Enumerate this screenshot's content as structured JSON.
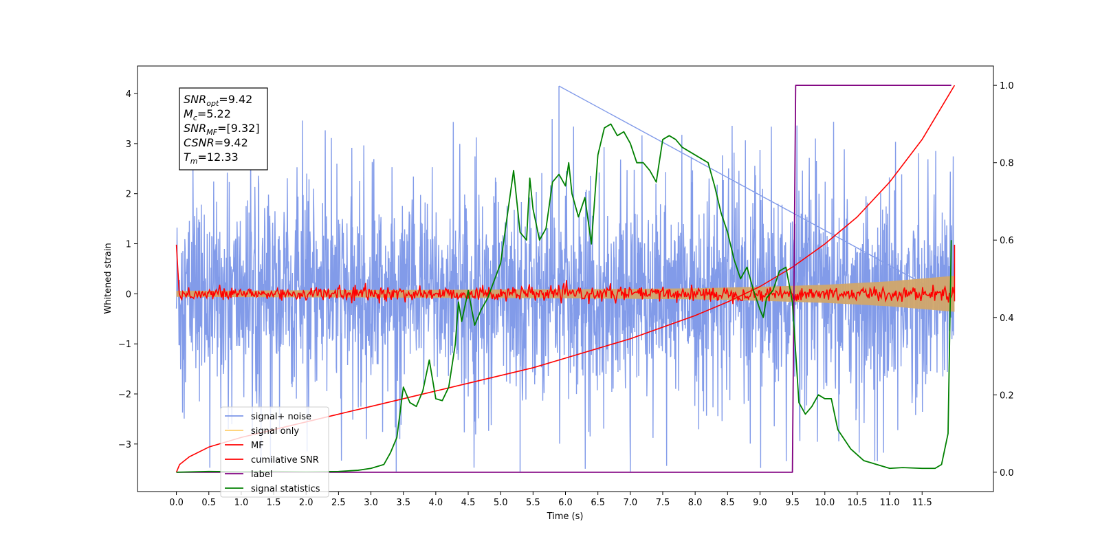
{
  "chart_data": {
    "type": "line",
    "title": "",
    "xlabel": "Time (s)",
    "ylabel": "Whitened strain",
    "xlim": [
      -0.6,
      12.6
    ],
    "ylim": [
      -3.95,
      4.55
    ],
    "y2lim": [
      -0.05,
      1.05
    ],
    "x_ticks": [
      0.0,
      0.5,
      1.0,
      1.5,
      2.0,
      2.5,
      3.0,
      3.5,
      4.0,
      4.5,
      5.0,
      5.5,
      6.0,
      6.5,
      7.0,
      7.5,
      8.0,
      8.5,
      9.0,
      9.5,
      10.0,
      10.5,
      11.0,
      11.5
    ],
    "x_tick_labels": [
      "0.0",
      "0.5",
      "1.0",
      "1.5",
      "2.0",
      "2.5",
      "3.0",
      "3.5",
      "4.0",
      "4.5",
      "5.0",
      "5.5",
      "6.0",
      "6.5",
      "7.0",
      "7.5",
      "8.0",
      "8.5",
      "9.0",
      "9.5",
      "10.0",
      "10.5",
      "11.0",
      "11.5"
    ],
    "y_ticks": [
      -3,
      -2,
      -1,
      0,
      1,
      2,
      3,
      4
    ],
    "y_tick_labels": [
      "−3",
      "−2",
      "−1",
      "0",
      "1",
      "2",
      "3",
      "4"
    ],
    "y2_ticks": [
      0.0,
      0.2,
      0.4,
      0.6,
      0.8,
      1.0
    ],
    "y2_tick_labels": [
      "0.0",
      "0.2",
      "0.4",
      "0.6",
      "0.8",
      "1.0"
    ],
    "grid": false,
    "legend": {
      "placement": "lower-left",
      "entries": [
        {
          "label": "signal+ noise",
          "color": "#7b96e8"
        },
        {
          "label": "signal only",
          "color": "#ffcf6b"
        },
        {
          "label": "MF",
          "color": "#ff0000"
        },
        {
          "label": "cumilative SNR",
          "color": "#ff0000"
        },
        {
          "label": "label",
          "color": "#800080"
        },
        {
          "label": "signal statistics",
          "color": "#008000"
        }
      ]
    },
    "annotation": [
      {
        "var": "SNR",
        "sub": "opt",
        "text": "=9.42"
      },
      {
        "var": "M",
        "sub": "c",
        "text": "=5.22"
      },
      {
        "var": "SNR",
        "sub": "MF",
        "text": "=[9.32]"
      },
      {
        "var": "CSNR",
        "sub": "",
        "text": "=9.42"
      },
      {
        "var": "T",
        "sub": "m",
        "text": "=12.33"
      }
    ],
    "series": [
      {
        "name": "signal+ noise",
        "color": "#7b96e8",
        "axis": "left",
        "description_values": {
          "x_start": 0.0,
          "x_end": 12.0,
          "band_min": -2.2,
          "band_max": 2.2,
          "peak_max": 4.15,
          "peak_min": -3.55
        }
      },
      {
        "name": "signal only",
        "color": "#d1a66a",
        "axis": "left",
        "envelope": {
          "x": [
            0.0,
            2.0,
            4.0,
            6.0,
            8.0,
            9.0,
            10.0,
            11.0,
            12.0
          ],
          "amplitude": [
            0.06,
            0.07,
            0.08,
            0.09,
            0.11,
            0.14,
            0.18,
            0.25,
            0.36
          ]
        }
      },
      {
        "name": "MF",
        "color": "#ff0000",
        "axis": "left",
        "start": {
          "x": 0.0,
          "y": 0.98
        },
        "noise_amplitude": 0.12
      },
      {
        "name": "cumilative SNR",
        "color": "#ff0000",
        "axis": "right",
        "x": [
          0.0,
          0.05,
          0.2,
          0.5,
          1.0,
          1.5,
          2.0,
          2.5,
          3.0,
          3.5,
          4.0,
          4.5,
          5.0,
          5.5,
          6.0,
          6.5,
          7.0,
          7.5,
          8.0,
          8.5,
          9.0,
          9.5,
          10.0,
          10.5,
          11.0,
          11.5,
          12.0
        ],
        "y": [
          0.0,
          0.02,
          0.04,
          0.065,
          0.09,
          0.11,
          0.13,
          0.15,
          0.17,
          0.19,
          0.21,
          0.23,
          0.25,
          0.27,
          0.295,
          0.32,
          0.345,
          0.375,
          0.405,
          0.44,
          0.48,
          0.53,
          0.59,
          0.66,
          0.75,
          0.86,
          1.0
        ]
      },
      {
        "name": "label",
        "color": "#800080",
        "axis": "right",
        "x": [
          0.0,
          9.5,
          9.55,
          11.95
        ],
        "y": [
          0.0,
          0.0,
          1.0,
          1.0
        ]
      },
      {
        "name": "signal statistics",
        "color": "#008000",
        "axis": "right",
        "x": [
          0.0,
          0.5,
          1.0,
          1.5,
          2.0,
          2.5,
          2.8,
          3.0,
          3.2,
          3.3,
          3.4,
          3.5,
          3.6,
          3.7,
          3.8,
          3.9,
          4.0,
          4.1,
          4.2,
          4.3,
          4.35,
          4.4,
          4.5,
          4.6,
          4.7,
          4.8,
          5.0,
          5.2,
          5.3,
          5.4,
          5.45,
          5.5,
          5.6,
          5.7,
          5.8,
          5.9,
          6.0,
          6.05,
          6.1,
          6.2,
          6.3,
          6.4,
          6.5,
          6.6,
          6.7,
          6.8,
          6.9,
          7.0,
          7.1,
          7.2,
          7.3,
          7.4,
          7.5,
          7.6,
          7.7,
          7.8,
          7.9,
          8.0,
          8.1,
          8.2,
          8.3,
          8.4,
          8.5,
          8.6,
          8.7,
          8.8,
          8.9,
          9.0,
          9.05,
          9.1,
          9.2,
          9.3,
          9.4,
          9.5,
          9.6,
          9.7,
          9.8,
          9.9,
          10.0,
          10.1,
          10.2,
          10.4,
          10.6,
          10.8,
          11.0,
          11.2,
          11.5,
          11.7,
          11.8,
          11.9,
          11.95
        ],
        "y": [
          0.0,
          0.002,
          0.001,
          0.002,
          0.001,
          0.002,
          0.005,
          0.01,
          0.02,
          0.05,
          0.09,
          0.22,
          0.18,
          0.17,
          0.21,
          0.29,
          0.19,
          0.185,
          0.22,
          0.33,
          0.44,
          0.39,
          0.47,
          0.38,
          0.42,
          0.45,
          0.54,
          0.78,
          0.62,
          0.6,
          0.76,
          0.68,
          0.6,
          0.63,
          0.75,
          0.77,
          0.74,
          0.8,
          0.72,
          0.66,
          0.71,
          0.59,
          0.82,
          0.89,
          0.9,
          0.87,
          0.88,
          0.85,
          0.8,
          0.8,
          0.78,
          0.75,
          0.86,
          0.87,
          0.86,
          0.84,
          0.83,
          0.82,
          0.81,
          0.8,
          0.74,
          0.67,
          0.62,
          0.55,
          0.5,
          0.53,
          0.47,
          0.42,
          0.4,
          0.45,
          0.47,
          0.52,
          0.53,
          0.44,
          0.18,
          0.15,
          0.17,
          0.2,
          0.19,
          0.19,
          0.11,
          0.06,
          0.03,
          0.02,
          0.01,
          0.012,
          0.01,
          0.01,
          0.02,
          0.1,
          0.6
        ]
      }
    ]
  }
}
